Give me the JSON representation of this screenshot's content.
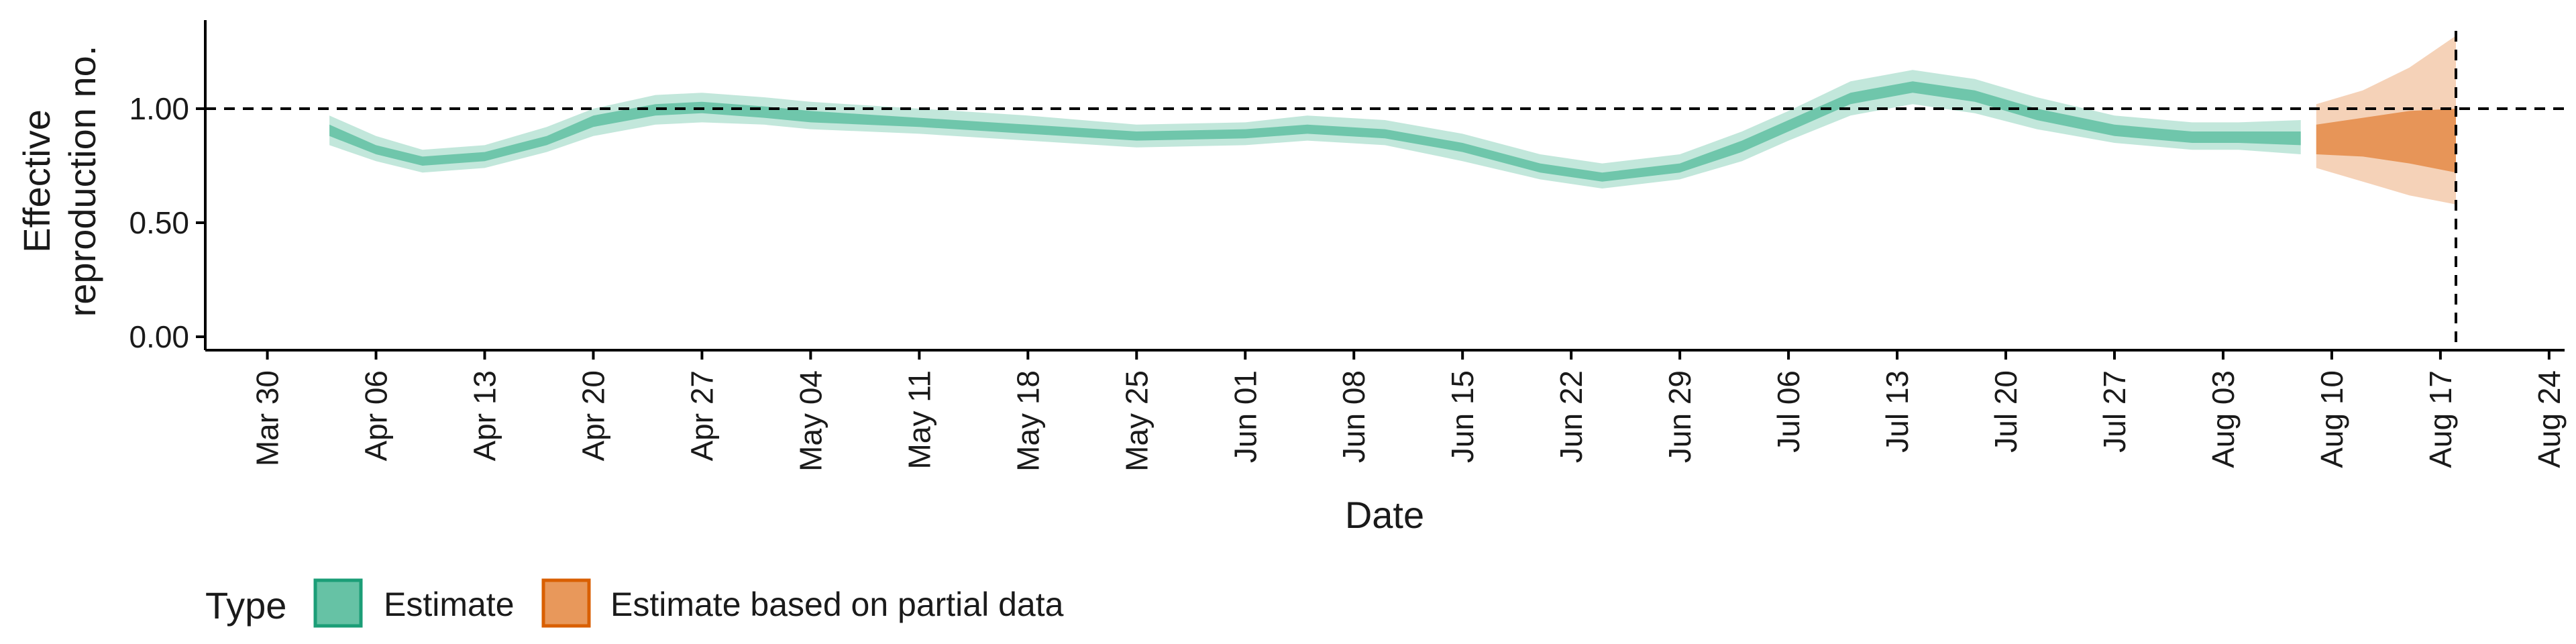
{
  "chart_data": {
    "type": "area",
    "title": "",
    "xlabel": "Date",
    "ylabel_lines": [
      "Effective",
      "reproduction no."
    ],
    "x_range": [
      "2020-03-26",
      "2020-08-25"
    ],
    "ylim": [
      0,
      1.38
    ],
    "y_ticks": [
      0.0,
      0.5,
      1.0
    ],
    "y_tick_labels": [
      "0.00",
      "0.50",
      "1.00"
    ],
    "x_ticks": [
      "2020-03-30",
      "2020-04-06",
      "2020-04-13",
      "2020-04-20",
      "2020-04-27",
      "2020-05-04",
      "2020-05-11",
      "2020-05-18",
      "2020-05-25",
      "2020-06-01",
      "2020-06-08",
      "2020-06-15",
      "2020-06-22",
      "2020-06-29",
      "2020-07-06",
      "2020-07-13",
      "2020-07-20",
      "2020-07-27",
      "2020-08-03",
      "2020-08-10",
      "2020-08-17",
      "2020-08-24"
    ],
    "x_tick_labels": [
      "Mar 30",
      "Apr 06",
      "Apr 13",
      "Apr 20",
      "Apr 27",
      "May 04",
      "May 11",
      "May 18",
      "May 25",
      "Jun 01",
      "Jun 08",
      "Jun 15",
      "Jun 22",
      "Jun 29",
      "Jul 06",
      "Jul 13",
      "Jul 20",
      "Jul 27",
      "Aug 03",
      "Aug 10",
      "Aug 17",
      "Aug 24"
    ],
    "reference_lines": {
      "horizontal_y": 1.0,
      "vertical_x": "2020-08-18"
    },
    "grid": false,
    "legend": {
      "position": "bottom-left",
      "title": "Type",
      "entries": [
        "Estimate",
        "Estimate based on partial data"
      ]
    },
    "series": [
      {
        "name": "Estimate",
        "color_fill": "#66c2a5",
        "points": [
          {
            "x": "2020-04-03",
            "lo90": 0.84,
            "lo50": 0.88,
            "hi50": 0.93,
            "hi90": 0.97
          },
          {
            "x": "2020-04-06",
            "lo90": 0.77,
            "lo50": 0.8,
            "hi50": 0.84,
            "hi90": 0.88
          },
          {
            "x": "2020-04-09",
            "lo90": 0.72,
            "lo50": 0.75,
            "hi50": 0.79,
            "hi90": 0.82
          },
          {
            "x": "2020-04-13",
            "lo90": 0.74,
            "lo50": 0.77,
            "hi50": 0.81,
            "hi90": 0.84
          },
          {
            "x": "2020-04-17",
            "lo90": 0.81,
            "lo50": 0.84,
            "hi50": 0.88,
            "hi90": 0.92
          },
          {
            "x": "2020-04-20",
            "lo90": 0.88,
            "lo50": 0.92,
            "hi50": 0.97,
            "hi90": 1.0
          },
          {
            "x": "2020-04-24",
            "lo90": 0.93,
            "lo50": 0.97,
            "hi50": 1.02,
            "hi90": 1.06
          },
          {
            "x": "2020-04-27",
            "lo90": 0.94,
            "lo50": 0.98,
            "hi50": 1.03,
            "hi90": 1.07
          },
          {
            "x": "2020-05-01",
            "lo90": 0.93,
            "lo50": 0.96,
            "hi50": 1.01,
            "hi90": 1.05
          },
          {
            "x": "2020-05-04",
            "lo90": 0.91,
            "lo50": 0.94,
            "hi50": 0.99,
            "hi90": 1.03
          },
          {
            "x": "2020-05-11",
            "lo90": 0.89,
            "lo50": 0.92,
            "hi50": 0.96,
            "hi90": 1.0
          },
          {
            "x": "2020-05-18",
            "lo90": 0.86,
            "lo50": 0.89,
            "hi50": 0.93,
            "hi90": 0.97
          },
          {
            "x": "2020-05-25",
            "lo90": 0.83,
            "lo50": 0.86,
            "hi50": 0.9,
            "hi90": 0.93
          },
          {
            "x": "2020-06-01",
            "lo90": 0.84,
            "lo50": 0.87,
            "hi50": 0.91,
            "hi90": 0.94
          },
          {
            "x": "2020-06-05",
            "lo90": 0.86,
            "lo50": 0.89,
            "hi50": 0.93,
            "hi90": 0.97
          },
          {
            "x": "2020-06-10",
            "lo90": 0.84,
            "lo50": 0.87,
            "hi50": 0.91,
            "hi90": 0.95
          },
          {
            "x": "2020-06-15",
            "lo90": 0.77,
            "lo50": 0.81,
            "hi50": 0.85,
            "hi90": 0.89
          },
          {
            "x": "2020-06-20",
            "lo90": 0.69,
            "lo50": 0.72,
            "hi50": 0.76,
            "hi90": 0.8
          },
          {
            "x": "2020-06-24",
            "lo90": 0.65,
            "lo50": 0.68,
            "hi50": 0.72,
            "hi90": 0.76
          },
          {
            "x": "2020-06-29",
            "lo90": 0.69,
            "lo50": 0.72,
            "hi50": 0.76,
            "hi90": 0.8
          },
          {
            "x": "2020-07-03",
            "lo90": 0.77,
            "lo50": 0.81,
            "hi50": 0.86,
            "hi90": 0.9
          },
          {
            "x": "2020-07-06",
            "lo90": 0.86,
            "lo50": 0.9,
            "hi50": 0.95,
            "hi90": 0.99
          },
          {
            "x": "2020-07-10",
            "lo90": 0.97,
            "lo50": 1.02,
            "hi50": 1.07,
            "hi90": 1.12
          },
          {
            "x": "2020-07-14",
            "lo90": 1.02,
            "lo50": 1.07,
            "hi50": 1.12,
            "hi90": 1.17
          },
          {
            "x": "2020-07-18",
            "lo90": 0.98,
            "lo50": 1.03,
            "hi50": 1.08,
            "hi90": 1.13
          },
          {
            "x": "2020-07-22",
            "lo90": 0.91,
            "lo50": 0.95,
            "hi50": 1.0,
            "hi90": 1.05
          },
          {
            "x": "2020-07-27",
            "lo90": 0.85,
            "lo50": 0.88,
            "hi50": 0.93,
            "hi90": 0.97
          },
          {
            "x": "2020-08-01",
            "lo90": 0.82,
            "lo50": 0.85,
            "hi50": 0.9,
            "hi90": 0.94
          },
          {
            "x": "2020-08-04",
            "lo90": 0.82,
            "lo50": 0.85,
            "hi50": 0.9,
            "hi90": 0.94
          },
          {
            "x": "2020-08-08",
            "lo90": 0.8,
            "lo50": 0.84,
            "hi50": 0.9,
            "hi90": 0.95
          }
        ]
      },
      {
        "name": "Estimate based on partial data",
        "color_fill": "#e68e4e",
        "points": [
          {
            "x": "2020-08-09",
            "lo90": 0.74,
            "lo50": 0.8,
            "hi50": 0.93,
            "hi90": 1.02
          },
          {
            "x": "2020-08-12",
            "lo90": 0.68,
            "lo50": 0.79,
            "hi50": 0.96,
            "hi90": 1.08
          },
          {
            "x": "2020-08-15",
            "lo90": 0.62,
            "lo50": 0.76,
            "hi50": 0.99,
            "hi90": 1.18
          },
          {
            "x": "2020-08-18",
            "lo90": 0.58,
            "lo50": 0.72,
            "hi50": 1.0,
            "hi90": 1.32
          }
        ]
      }
    ]
  }
}
